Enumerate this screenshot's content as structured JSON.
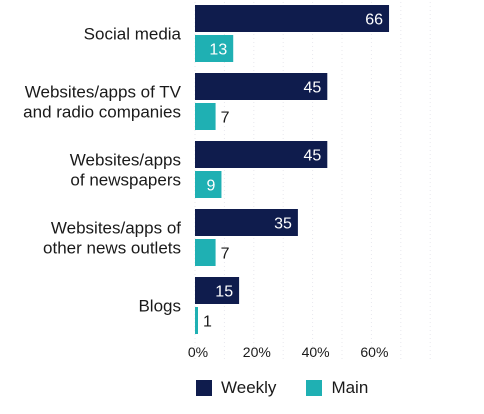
{
  "chart_data": {
    "type": "bar",
    "orientation": "horizontal",
    "categories": [
      [
        "Social media"
      ],
      [
        "Websites/apps of TV",
        "and radio companies"
      ],
      [
        "Websites/apps",
        "of newspapers"
      ],
      [
        "Websites/apps of",
        "other news outlets"
      ],
      [
        "Blogs"
      ]
    ],
    "series": [
      {
        "name": "Weekly",
        "values": [
          66,
          45,
          45,
          35,
          15
        ],
        "color": "#0f1c4d",
        "label_color": "#ffffff"
      },
      {
        "name": "Main",
        "values": [
          13,
          7,
          9,
          7,
          1
        ],
        "color": "#1fb0b3",
        "label_color": "#ffffff"
      }
    ],
    "xticks": [
      "0%",
      "20%",
      "40%",
      "60%"
    ],
    "xlim": [
      0,
      80
    ],
    "legend_position": "bottom"
  }
}
